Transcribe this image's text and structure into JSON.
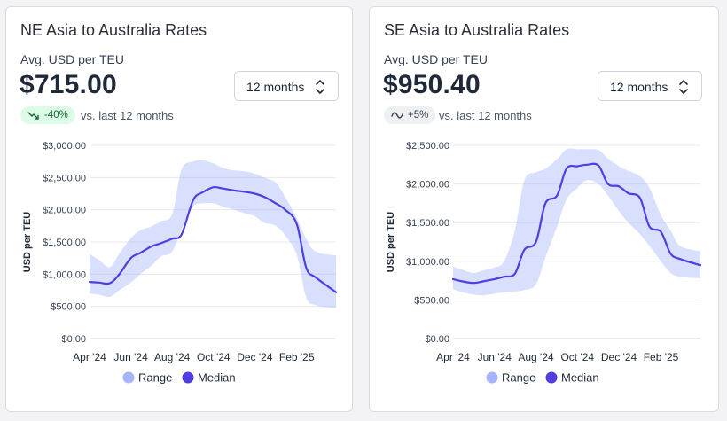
{
  "cards": [
    {
      "title": "NE Asia to Australia Rates",
      "subtitle": "Avg. USD per TEU",
      "price": "$715.00",
      "period": "12 months",
      "change": "-40%",
      "change_trend": "down",
      "change_color": "#dcfce7",
      "vs_text": "vs. last 12 months",
      "icons": {
        "select": "chevron-up-down-icon",
        "trend": "trend-down-icon"
      }
    },
    {
      "title": "SE Asia to Australia Rates",
      "subtitle": "Avg. USD per TEU",
      "price": "$950.40",
      "period": "12 months",
      "change": "+5%",
      "change_trend": "flat",
      "change_color": "#eef0f2",
      "vs_text": "vs. last 12 months",
      "icons": {
        "select": "chevron-up-down-icon",
        "trend": "trend-flat-icon"
      }
    }
  ],
  "chart_data": [
    {
      "type": "area",
      "ylabel": "USD per TEU",
      "ylim": [
        0,
        3000
      ],
      "yticks": [
        0,
        500,
        1000,
        1500,
        2000,
        2500,
        3000
      ],
      "ytick_labels": [
        "$0.00",
        "$500.00",
        "$1,000.00",
        "$1,500.00",
        "$2,000.00",
        "$2,500.00",
        "$3,000.00"
      ],
      "x_range": [
        "2024-04-01",
        "2025-03-31"
      ],
      "xtick_labels": [
        "Apr '24",
        "Jun '24",
        "Aug '24",
        "Oct '24",
        "Dec '24",
        "Feb '25"
      ],
      "xtick_dates": [
        "2024-04-01",
        "2024-06-01",
        "2024-08-01",
        "2024-10-01",
        "2024-12-01",
        "2025-02-01"
      ],
      "grid": true,
      "legend": "bottom-center",
      "colors": {
        "range": "#a5b4fc",
        "median": "#4f3ee0"
      },
      "series": [
        {
          "name": "Range",
          "x": [
            "2024-04-01",
            "2024-04-15",
            "2024-05-01",
            "2024-05-15",
            "2024-06-01",
            "2024-06-15",
            "2024-07-01",
            "2024-07-15",
            "2024-08-01",
            "2024-08-15",
            "2024-09-01",
            "2024-09-15",
            "2024-10-01",
            "2024-10-15",
            "2024-11-01",
            "2024-11-15",
            "2024-12-01",
            "2024-12-15",
            "2025-01-01",
            "2025-01-15",
            "2025-02-01",
            "2025-02-15",
            "2025-03-01",
            "2025-03-31"
          ],
          "low": [
            700,
            680,
            650,
            750,
            870,
            1000,
            1130,
            1270,
            1350,
            1700,
            2050,
            2100,
            2100,
            2050,
            2000,
            1950,
            1900,
            1800,
            1750,
            1600,
            1300,
            640,
            520,
            470
          ],
          "high": [
            1310,
            1220,
            1110,
            1320,
            1560,
            1680,
            1740,
            1820,
            1930,
            2630,
            2750,
            2770,
            2720,
            2650,
            2610,
            2600,
            2560,
            2500,
            2420,
            2200,
            1870,
            1550,
            1350,
            1290
          ]
        },
        {
          "name": "Median",
          "x": [
            "2024-04-01",
            "2024-04-15",
            "2024-05-01",
            "2024-05-15",
            "2024-06-01",
            "2024-06-15",
            "2024-07-01",
            "2024-07-15",
            "2024-08-01",
            "2024-08-15",
            "2024-09-01",
            "2024-09-15",
            "2024-10-01",
            "2024-10-15",
            "2024-11-01",
            "2024-11-15",
            "2024-12-01",
            "2024-12-15",
            "2025-01-01",
            "2025-01-15",
            "2025-02-01",
            "2025-02-15",
            "2025-03-01",
            "2025-03-31"
          ],
          "y": [
            880,
            870,
            860,
            1000,
            1250,
            1330,
            1430,
            1480,
            1550,
            1620,
            2150,
            2270,
            2350,
            2330,
            2300,
            2280,
            2250,
            2200,
            2100,
            2000,
            1780,
            1100,
            950,
            720
          ]
        }
      ]
    },
    {
      "type": "area",
      "ylabel": "USD per TEU",
      "ylim": [
        0,
        2500
      ],
      "yticks": [
        0,
        500,
        1000,
        1500,
        2000,
        2500
      ],
      "ytick_labels": [
        "$0.00",
        "$500.00",
        "$1,000.00",
        "$1,500.00",
        "$2,000.00",
        "$2,500.00"
      ],
      "x_range": [
        "2024-04-01",
        "2025-03-31"
      ],
      "xtick_labels": [
        "Apr '24",
        "Jun '24",
        "Aug '24",
        "Oct '24",
        "Dec '24",
        "Feb '25"
      ],
      "xtick_dates": [
        "2024-04-01",
        "2024-06-01",
        "2024-08-01",
        "2024-10-01",
        "2024-12-01",
        "2025-02-01"
      ],
      "grid": true,
      "legend": "bottom-center",
      "colors": {
        "range": "#a5b4fc",
        "median": "#4f3ee0"
      },
      "series": [
        {
          "name": "Range",
          "x": [
            "2024-04-01",
            "2024-04-15",
            "2024-05-01",
            "2024-05-15",
            "2024-06-01",
            "2024-06-15",
            "2024-07-01",
            "2024-07-15",
            "2024-08-01",
            "2024-08-15",
            "2024-09-01",
            "2024-09-15",
            "2024-10-01",
            "2024-10-15",
            "2024-11-01",
            "2024-11-15",
            "2024-12-01",
            "2024-12-15",
            "2025-01-01",
            "2025-01-15",
            "2025-02-01",
            "2025-02-15",
            "2025-03-01",
            "2025-03-31"
          ],
          "low": [
            640,
            600,
            570,
            560,
            580,
            600,
            610,
            630,
            700,
            1050,
            1450,
            1800,
            1950,
            2050,
            2000,
            1850,
            1650,
            1500,
            1350,
            1200,
            1000,
            850,
            800,
            780
          ],
          "high": [
            930,
            890,
            850,
            880,
            920,
            1000,
            1400,
            2050,
            2150,
            2200,
            2320,
            2450,
            2450,
            2450,
            2440,
            2330,
            2230,
            2170,
            2100,
            1950,
            1600,
            1400,
            1200,
            1130
          ]
        },
        {
          "name": "Median",
          "x": [
            "2024-04-01",
            "2024-04-15",
            "2024-05-01",
            "2024-05-15",
            "2024-06-01",
            "2024-06-15",
            "2024-07-01",
            "2024-07-15",
            "2024-08-01",
            "2024-08-15",
            "2024-09-01",
            "2024-09-15",
            "2024-10-01",
            "2024-10-15",
            "2024-11-01",
            "2024-11-15",
            "2024-12-01",
            "2024-12-15",
            "2025-01-01",
            "2025-01-15",
            "2025-02-01",
            "2025-02-15",
            "2025-03-01",
            "2025-03-31"
          ],
          "y": [
            770,
            740,
            720,
            740,
            770,
            800,
            840,
            1150,
            1250,
            1750,
            1850,
            2200,
            2230,
            2250,
            2240,
            2000,
            1970,
            1880,
            1820,
            1450,
            1380,
            1100,
            1030,
            950
          ]
        }
      ]
    }
  ]
}
